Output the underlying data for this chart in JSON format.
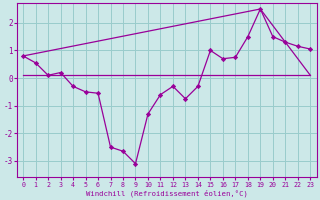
{
  "xlabel": "Windchill (Refroidissement éolien,°C)",
  "background_color": "#cce8e8",
  "grid_color": "#99cccc",
  "line_color": "#990099",
  "x_ticks": [
    0,
    1,
    2,
    3,
    4,
    5,
    6,
    7,
    8,
    9,
    10,
    11,
    12,
    13,
    14,
    15,
    16,
    17,
    18,
    19,
    20,
    21,
    22,
    23
  ],
  "y_ticks": [
    -3,
    -2,
    -1,
    0,
    1,
    2
  ],
  "xlim": [
    -0.5,
    23.5
  ],
  "ylim": [
    -3.6,
    2.7
  ],
  "main_line": {
    "x": [
      0,
      1,
      2,
      3,
      4,
      5,
      6,
      7,
      8,
      9,
      10,
      11,
      12,
      13,
      14,
      15,
      16,
      17,
      18,
      19,
      20,
      21,
      22,
      23
    ],
    "y": [
      0.8,
      0.55,
      0.1,
      0.2,
      -0.3,
      -0.5,
      -0.55,
      -2.5,
      -2.65,
      -3.1,
      -1.3,
      -0.6,
      -0.3,
      -0.75,
      -0.3,
      1.0,
      0.7,
      0.75,
      1.5,
      2.5,
      1.5,
      1.3,
      1.15,
      1.05
    ]
  },
  "flat_line": {
    "x": [
      0,
      23
    ],
    "y": [
      0.1,
      0.1
    ]
  },
  "triangle_line": {
    "x": [
      0,
      19,
      23
    ],
    "y": [
      0.8,
      2.5,
      0.1
    ]
  }
}
